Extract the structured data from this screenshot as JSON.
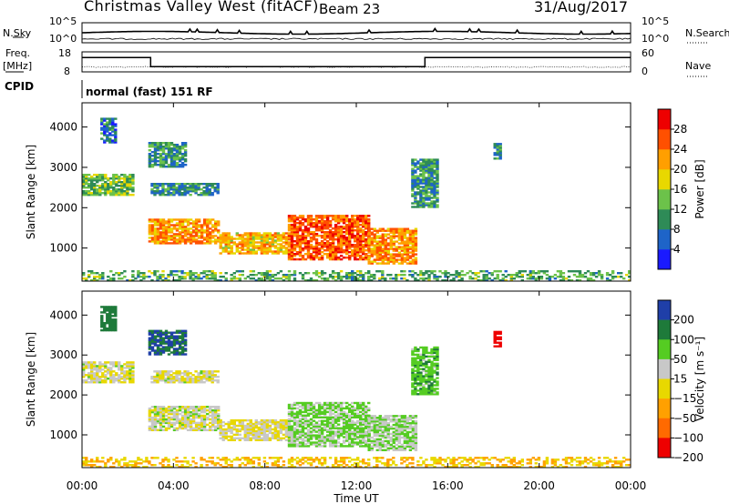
{
  "header": {
    "station": "Christmas Valley West (fitACF)",
    "beam": "Beam 23",
    "date": "31/Aug/2017"
  },
  "panels": {
    "nsky_label": "N.Sky",
    "nsky_ticks": [
      "10^5",
      "10^0"
    ],
    "nsearch_label": "N.Search",
    "nsearch_ticks": [
      "10^5",
      "10^0"
    ],
    "freq_label_1": "Freq.",
    "freq_label_2": "[MHz]",
    "freq_ticks": [
      "18",
      "8"
    ],
    "nave_label": "Nave",
    "nave_ticks": [
      "60",
      "0"
    ],
    "cpid_label": "CPID",
    "cpid_text": "normal (fast) 151 RF"
  },
  "chart_data": {
    "type": "heatmap",
    "x_axis": {
      "label": "Time UT",
      "ticks": [
        "00:00",
        "04:00",
        "08:00",
        "12:00",
        "16:00",
        "20:00",
        "00:00"
      ],
      "range": [
        0,
        24
      ]
    },
    "power": {
      "y_label": "Slant Range [km]",
      "y_ticks": [
        1000,
        2000,
        3000,
        4000
      ],
      "ylim": [
        180,
        4600
      ],
      "colorbar_label": "Power [dB]",
      "colorbar_ticks": [
        "4",
        "8",
        "12",
        "16",
        "20",
        "24",
        "28"
      ],
      "clim": [
        0,
        32
      ]
    },
    "velocity": {
      "y_label": "Slant Range [km]",
      "y_ticks": [
        1000,
        2000,
        3000,
        4000
      ],
      "ylim": [
        180,
        4600
      ],
      "colorbar_label": "Velocity [m s⁻¹]",
      "colorbar_ticks": [
        "200",
        "100",
        "50",
        "15",
        "−15",
        "−50",
        "−100",
        "−200"
      ]
    },
    "freq_series": [
      {
        "t0": 0.0,
        "t1": 3.0,
        "mhz": 15.2
      },
      {
        "t0": 3.0,
        "t1": 15.0,
        "mhz": 10.6
      },
      {
        "t0": 15.0,
        "t1": 24.0,
        "mhz": 15.2
      }
    ],
    "echo_regions": [
      {
        "t0": 0.0,
        "t1": 2.2,
        "r0": 2300,
        "r1": 2800,
        "power": 14,
        "vel": 5
      },
      {
        "t0": 0.8,
        "t1": 1.5,
        "r0": 3600,
        "r1": 4200,
        "power": 8,
        "vel": 120
      },
      {
        "t0": 2.9,
        "t1": 4.5,
        "r0": 3000,
        "r1": 3600,
        "power": 10,
        "vel": 150
      },
      {
        "t0": 3.0,
        "t1": 6.0,
        "r0": 2300,
        "r1": 2600,
        "power": 9,
        "vel": 5
      },
      {
        "t0": 2.9,
        "t1": 6.0,
        "r0": 1100,
        "r1": 1700,
        "power": 22,
        "vel": 10
      },
      {
        "t0": 6.0,
        "t1": 9.0,
        "r0": 850,
        "r1": 1350,
        "power": 20,
        "vel": 0
      },
      {
        "t0": 9.0,
        "t1": 12.5,
        "r0": 700,
        "r1": 1800,
        "power": 26,
        "vel": 40
      },
      {
        "t0": 12.5,
        "t1": 14.6,
        "r0": 600,
        "r1": 1500,
        "power": 23,
        "vel": 30
      },
      {
        "t0": 14.4,
        "t1": 15.5,
        "r0": 2000,
        "r1": 3200,
        "power": 10,
        "vel": 60
      },
      {
        "t0": 18.0,
        "t1": 18.3,
        "r0": 3200,
        "r1": 3600,
        "power": 10,
        "vel": -220
      },
      {
        "t0": 0.0,
        "t1": 24.0,
        "r0": 180,
        "r1": 450,
        "power": 12,
        "vel": -30
      }
    ]
  },
  "colors": {
    "power_scale": [
      "#1a1aff",
      "#1e64c8",
      "#2e8b57",
      "#6cc24a",
      "#e8d800",
      "#ff9f00",
      "#ff5000",
      "#ee0000"
    ],
    "velocity_scale": [
      "#1f3fa8",
      "#1e7a3a",
      "#55cc22",
      "#c8c8c8",
      "#e8d800",
      "#ffa000",
      "#ff6a00",
      "#ee0000"
    ]
  }
}
